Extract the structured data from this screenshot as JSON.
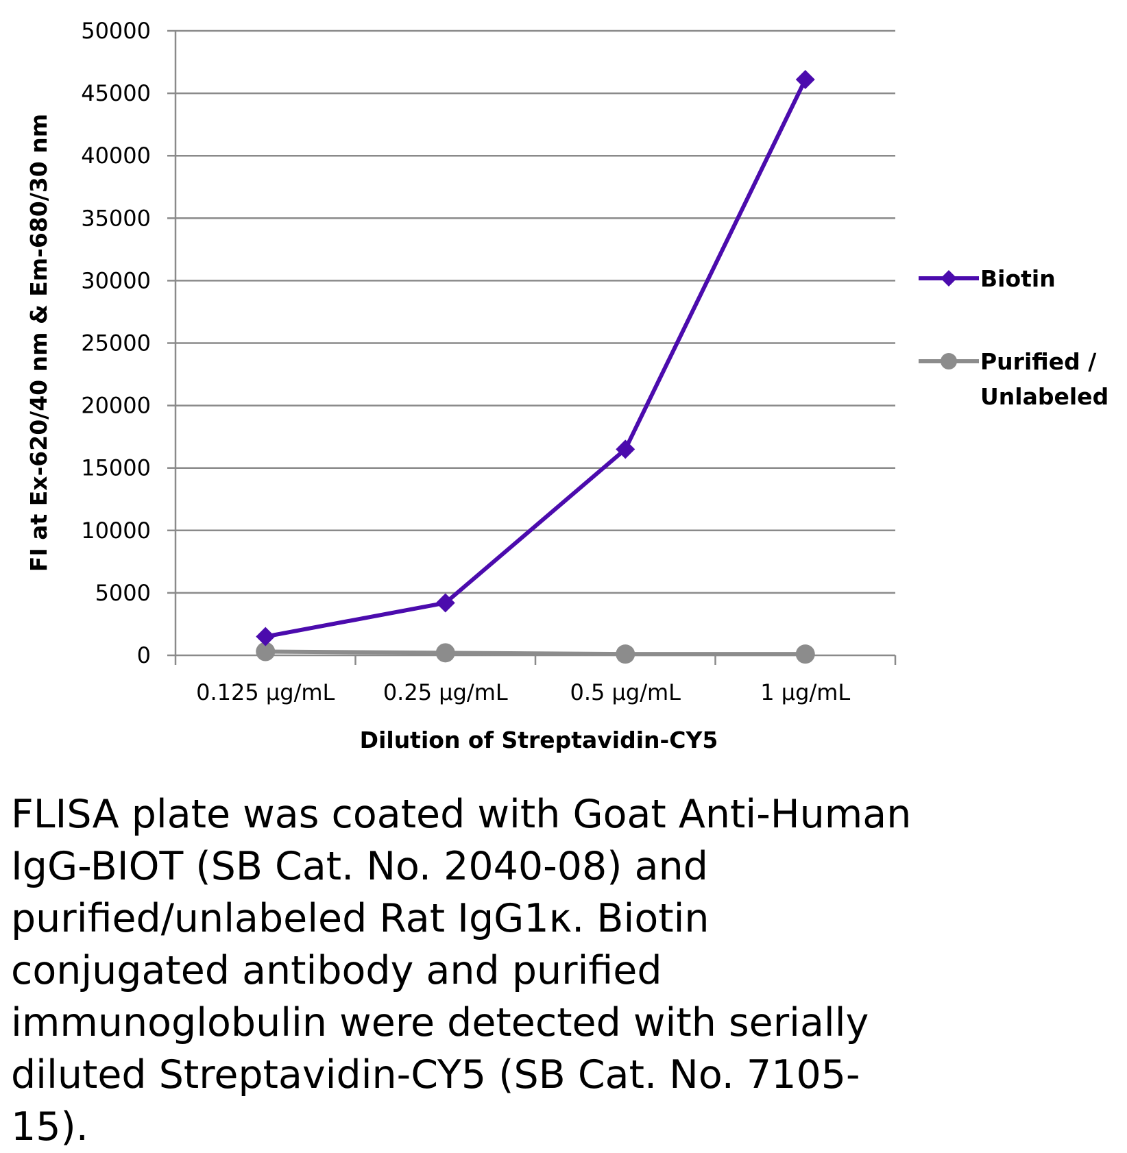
{
  "chart_data": {
    "type": "line",
    "categories": [
      "0.125 µg/mL",
      "0.25 µg/mL",
      "0.5 µg/mL",
      "1 µg/mL"
    ],
    "series": [
      {
        "name": "Biotin",
        "values": [
          1500,
          4200,
          16500,
          46100
        ],
        "color": "#4B0BAD",
        "marker": "diamond"
      },
      {
        "name": "Purified / Unlabeled",
        "values": [
          300,
          200,
          100,
          100
        ],
        "color": "#8C8C8C",
        "marker": "circle"
      }
    ],
    "xlabel": "Dilution of Streptavidin-CY5",
    "ylabel": "FI at Ex-620/40 nm & Em-680/30 nm",
    "ylim": [
      0,
      50000
    ],
    "yticks": [
      0,
      5000,
      10000,
      15000,
      20000,
      25000,
      30000,
      35000,
      40000,
      45000,
      50000
    ],
    "grid": true,
    "legend_position": "right",
    "legend_lines": [
      [
        "Biotin"
      ],
      [
        "Purified /",
        "Unlabeled"
      ]
    ]
  },
  "caption": "FLISA plate was coated with Goat Anti-Human IgG-BIOT (SB Cat. No. 2040-08) and purified/unlabeled Rat IgG1κ.  Biotin conjugated antibody and purified immunoglobulin were detected with serially diluted Streptavidin-CY5 (SB Cat. No. 7105-15)."
}
